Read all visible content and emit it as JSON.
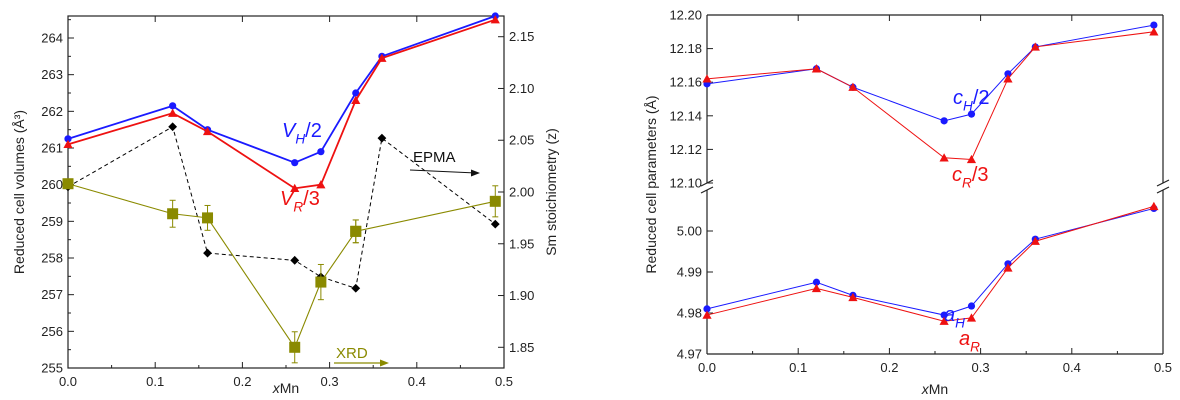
{
  "colors": {
    "vh": "#1a1aff",
    "vr": "#ee1111",
    "sm": "#000000",
    "xrd": "#8a8a00",
    "ch": "#1a1aff",
    "cr": "#ee1111",
    "ah": "#1a1aff",
    "ar": "#ee1111",
    "axis": "#222222"
  },
  "chart_data": [
    {
      "type": "line",
      "xlabel_prefix": "x",
      "xlabel_suffix": "Mn",
      "ylabel": "Reduced cell volumes (Å³)",
      "y2label": "Sm stoichiometry (z)",
      "xlim": [
        0,
        0.5
      ],
      "ylim": [
        255,
        264.6
      ],
      "y2lim": [
        1.83,
        2.17
      ],
      "xticks": [
        "0.0",
        "0.1",
        "0.2",
        "0.3",
        "0.4",
        "0.5"
      ],
      "yticks": [
        "255",
        "256",
        "257",
        "258",
        "259",
        "260",
        "261",
        "262",
        "263",
        "264"
      ],
      "y2ticks": [
        "1.85",
        "1.90",
        "1.95",
        "2.00",
        "2.05",
        "2.10",
        "2.15"
      ],
      "series": [
        {
          "name": "V_H/2",
          "axis": "left",
          "color": "vh",
          "marker": "circle",
          "dashed": false,
          "x": [
            0,
            0.12,
            0.16,
            0.26,
            0.29,
            0.33,
            0.36,
            0.49
          ],
          "y": [
            261.25,
            262.15,
            261.5,
            260.6,
            260.9,
            262.5,
            263.5,
            264.6
          ]
        },
        {
          "name": "V_R/3",
          "axis": "left",
          "color": "vr",
          "marker": "triangle",
          "dashed": false,
          "x": [
            0,
            0.12,
            0.16,
            0.26,
            0.29,
            0.33,
            0.36,
            0.49
          ],
          "y": [
            261.1,
            261.95,
            261.45,
            259.9,
            260.0,
            262.3,
            263.45,
            264.5
          ]
        },
        {
          "name": "EPMA",
          "axis": "right",
          "color": "sm",
          "marker": "diamond",
          "dashed": true,
          "x": [
            0,
            0.12,
            0.16,
            0.26,
            0.29,
            0.33,
            0.36,
            0.49
          ],
          "y": [
            2.005,
            2.063,
            1.941,
            1.934,
            1.918,
            1.907,
            2.052,
            1.969
          ]
        },
        {
          "name": "XRD",
          "axis": "right",
          "color": "xrd",
          "marker": "square",
          "dashed": false,
          "x": [
            0,
            0.12,
            0.16,
            0.26,
            0.29,
            0.33
          ],
          "y": [
            2.008,
            1.979,
            1.975,
            1.85,
            1.913,
            1.962
          ],
          "err": [
            0,
            0.013,
            0.012,
            0.015,
            0.017,
            0.011
          ]
        },
        {
          "name": "XRD",
          "axis": "right",
          "color": "xrd",
          "marker": "square",
          "dashed": false,
          "x": [
            0.33,
            0.49
          ],
          "y": [
            1.962,
            1.991
          ],
          "err": [
            0.011,
            0.015
          ]
        }
      ],
      "annotations": {
        "vh": {
          "main": "V",
          "sub": "H",
          "tail": "/2"
        },
        "vr": {
          "main": "V",
          "sub": "R",
          "tail": "/3"
        },
        "epma": "EPMA",
        "xrd": "XRD"
      }
    },
    {
      "type": "line",
      "xlabel_prefix": "x",
      "xlabel_suffix": "Mn",
      "ylabel": "Reduced cell parameters (Å)",
      "xlim": [
        0,
        0.5
      ],
      "broken_y_axis": true,
      "upper": {
        "ylim": [
          12.1,
          12.2
        ],
        "yticks": [
          "12.10",
          "12.12",
          "12.14",
          "12.16",
          "12.18",
          "12.20"
        ]
      },
      "lower": {
        "ylim": [
          4.97,
          5.01
        ],
        "yticks": [
          "4.97",
          "4.98",
          "4.99",
          "5.00"
        ]
      },
      "xticks": [
        "0.0",
        "0.1",
        "0.2",
        "0.3",
        "0.4",
        "0.5"
      ],
      "series": [
        {
          "name": "c_H/2",
          "panel": "upper",
          "color": "ch",
          "marker": "circle",
          "x": [
            0,
            0.12,
            0.16,
            0.26,
            0.29,
            0.33,
            0.36,
            0.49
          ],
          "y": [
            12.159,
            12.168,
            12.157,
            12.137,
            12.141,
            12.165,
            12.181,
            12.194
          ]
        },
        {
          "name": "c_R/3",
          "panel": "upper",
          "color": "cr",
          "marker": "triangle",
          "x": [
            0,
            0.12,
            0.16,
            0.26,
            0.29,
            0.33,
            0.36,
            0.49
          ],
          "y": [
            12.162,
            12.168,
            12.157,
            12.115,
            12.114,
            12.162,
            12.181,
            12.19
          ]
        },
        {
          "name": "a_H",
          "panel": "lower",
          "color": "ah",
          "marker": "circle",
          "x": [
            0,
            0.12,
            0.16,
            0.26,
            0.29,
            0.33,
            0.36,
            0.49
          ],
          "y": [
            4.981,
            4.9875,
            4.9843,
            4.9795,
            4.9817,
            4.992,
            4.998,
            5.0055
          ]
        },
        {
          "name": "a_R",
          "panel": "lower",
          "color": "ar",
          "marker": "triangle",
          "x": [
            0,
            0.12,
            0.16,
            0.26,
            0.29,
            0.33,
            0.36,
            0.49
          ],
          "y": [
            4.9795,
            4.986,
            4.9838,
            4.978,
            4.9788,
            4.991,
            4.9975,
            5.006
          ]
        }
      ],
      "annotations": {
        "ch": {
          "main": "c",
          "sub": "H",
          "tail": "/2"
        },
        "cr": {
          "main": "c",
          "sub": "R",
          "tail": "/3"
        },
        "ah": {
          "main": "a",
          "sub": "H"
        },
        "ar": {
          "main": "a",
          "sub": "R"
        }
      }
    }
  ]
}
